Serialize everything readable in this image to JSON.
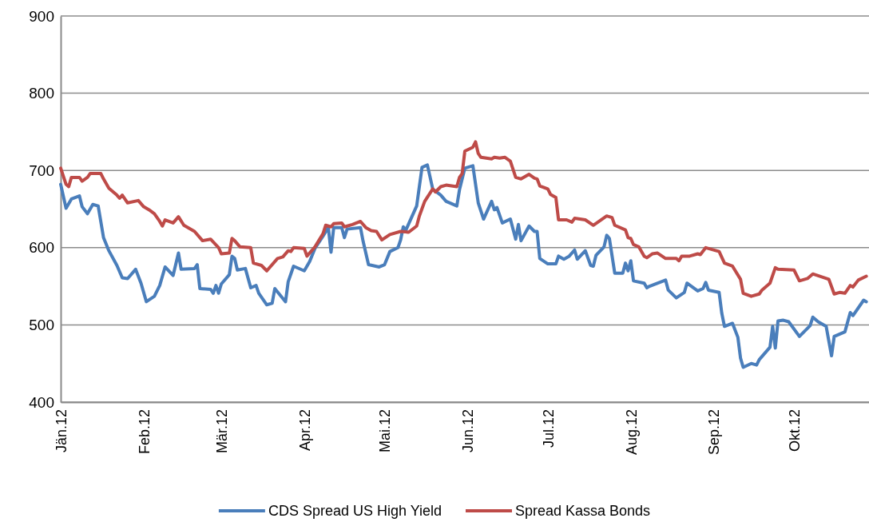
{
  "chart_data": {
    "type": "line",
    "ylim": [
      400,
      900
    ],
    "yticks": [
      400,
      500,
      600,
      700,
      800,
      900
    ],
    "xlim": [
      "2012-01-01",
      "2012-10-29"
    ],
    "xticks": [
      {
        "value": "2012-01-01",
        "label": "Jän.12"
      },
      {
        "value": "2012-02-01",
        "label": "Feb.12"
      },
      {
        "value": "2012-03-01",
        "label": "Mär.12"
      },
      {
        "value": "2012-04-01",
        "label": "Apr.12"
      },
      {
        "value": "2012-05-01",
        "label": "Mai.12"
      },
      {
        "value": "2012-06-01",
        "label": "Jun.12"
      },
      {
        "value": "2012-07-01",
        "label": "Jul.12"
      },
      {
        "value": "2012-08-01",
        "label": "Aug.12"
      },
      {
        "value": "2012-09-01",
        "label": "Sep.12"
      },
      {
        "value": "2012-10-01",
        "label": "Okt.12"
      }
    ],
    "grid": "y",
    "legend": "bottom",
    "marker": "none",
    "line_style": "solid",
    "series": [
      {
        "name": "CDS Spread US High Yield",
        "color": "#4a7ebb",
        "x": [
          "2012-01-01",
          "2012-01-03",
          "2012-01-05",
          "2012-01-08",
          "2012-01-09",
          "2012-01-11",
          "2012-01-13",
          "2012-01-15",
          "2012-01-17",
          "2012-01-19",
          "2012-01-22",
          "2012-01-24",
          "2012-01-26",
          "2012-01-29",
          "2012-01-31",
          "2012-02-02",
          "2012-02-05",
          "2012-02-07",
          "2012-02-09",
          "2012-02-12",
          "2012-02-14",
          "2012-02-15",
          "2012-02-20",
          "2012-02-21",
          "2012-02-22",
          "2012-02-26",
          "2012-02-27",
          "2012-02-28",
          "2012-02-29",
          "2012-03-01",
          "2012-03-04",
          "2012-03-05",
          "2012-03-06",
          "2012-03-07",
          "2012-03-10",
          "2012-03-12",
          "2012-03-14",
          "2012-03-15",
          "2012-03-18",
          "2012-03-20",
          "2012-03-21",
          "2012-03-25",
          "2012-03-26",
          "2012-03-28",
          "2012-04-01",
          "2012-04-03",
          "2012-04-05",
          "2012-04-08",
          "2012-04-10",
          "2012-04-11",
          "2012-04-12",
          "2012-04-15",
          "2012-04-16",
          "2012-04-17",
          "2012-04-22",
          "2012-04-23",
          "2012-04-25",
          "2012-04-29",
          "2012-05-01",
          "2012-05-03",
          "2012-05-06",
          "2012-05-07",
          "2012-05-08",
          "2012-05-09",
          "2012-05-13",
          "2012-05-15",
          "2012-05-17",
          "2012-05-19",
          "2012-05-22",
          "2012-05-24",
          "2012-05-28",
          "2012-05-29",
          "2012-05-31",
          "2012-06-03",
          "2012-06-05",
          "2012-06-07",
          "2012-06-10",
          "2012-06-11",
          "2012-06-12",
          "2012-06-14",
          "2012-06-17",
          "2012-06-19",
          "2012-06-20",
          "2012-06-21",
          "2012-06-24",
          "2012-06-26",
          "2012-06-27",
          "2012-06-28",
          "2012-07-01",
          "2012-07-04",
          "2012-07-05",
          "2012-07-07",
          "2012-07-09",
          "2012-07-11",
          "2012-07-12",
          "2012-07-15",
          "2012-07-17",
          "2012-07-18",
          "2012-07-19",
          "2012-07-22",
          "2012-07-23",
          "2012-07-24",
          "2012-07-26",
          "2012-07-29",
          "2012-07-30",
          "2012-07-31",
          "2012-08-01",
          "2012-08-02",
          "2012-08-06",
          "2012-08-07",
          "2012-08-08",
          "2012-08-14",
          "2012-08-15",
          "2012-08-18",
          "2012-08-21",
          "2012-08-22",
          "2012-08-26",
          "2012-08-28",
          "2012-08-29",
          "2012-08-30",
          "2012-09-03",
          "2012-09-04",
          "2012-09-05",
          "2012-09-08",
          "2012-09-10",
          "2012-09-11",
          "2012-09-12",
          "2012-09-15",
          "2012-09-17",
          "2012-09-18",
          "2012-09-22",
          "2012-09-23",
          "2012-09-24",
          "2012-09-25",
          "2012-09-27",
          "2012-09-29",
          "2012-10-03",
          "2012-10-07",
          "2012-10-08",
          "2012-10-10",
          "2012-10-13",
          "2012-10-15",
          "2012-10-16",
          "2012-10-20",
          "2012-10-22",
          "2012-10-23",
          "2012-10-27",
          "2012-10-28"
        ],
        "values": [
          682,
          651,
          663,
          667,
          653,
          644,
          656,
          654,
          613,
          596,
          577,
          561,
          560,
          572,
          554,
          530,
          537,
          551,
          575,
          564,
          593,
          572,
          573,
          578,
          547,
          546,
          541,
          551,
          541,
          553,
          565,
          589,
          586,
          571,
          573,
          548,
          551,
          541,
          526,
          528,
          547,
          530,
          556,
          576,
          570,
          582,
          599,
          615,
          626,
          594,
          626,
          626,
          613,
          624,
          626,
          608,
          578,
          575,
          578,
          595,
          600,
          610,
          627,
          623,
          654,
          704,
          707,
          676,
          668,
          660,
          654,
          675,
          703,
          706,
          658,
          637,
          660,
          649,
          652,
          632,
          637,
          611,
          630,
          609,
          628,
          621,
          621,
          586,
          579,
          579,
          589,
          585,
          589,
          597,
          585,
          596,
          577,
          576,
          590,
          601,
          616,
          612,
          567,
          567,
          580,
          570,
          583,
          557,
          554,
          548,
          550,
          558,
          545,
          535,
          542,
          554,
          544,
          547,
          555,
          545,
          542,
          515,
          498,
          502,
          484,
          457,
          445,
          450,
          448,
          455,
          471,
          498,
          470,
          505,
          506,
          504,
          485,
          499,
          510,
          504,
          498,
          460,
          485,
          491,
          516,
          512,
          532,
          530
        ]
      },
      {
        "name": "Spread Kassa Bonds",
        "color": "#be4b48",
        "x": [
          "2012-01-01",
          "2012-01-03",
          "2012-01-04",
          "2012-01-05",
          "2012-01-08",
          "2012-01-09",
          "2012-01-11",
          "2012-01-12",
          "2012-01-16",
          "2012-01-17",
          "2012-01-19",
          "2012-01-22",
          "2012-01-23",
          "2012-01-24",
          "2012-01-26",
          "2012-01-30",
          "2012-02-01",
          "2012-02-03",
          "2012-02-05",
          "2012-02-07",
          "2012-02-08",
          "2012-02-09",
          "2012-02-12",
          "2012-02-14",
          "2012-02-16",
          "2012-02-20",
          "2012-02-23",
          "2012-02-26",
          "2012-02-29",
          "2012-03-01",
          "2012-03-04",
          "2012-03-05",
          "2012-03-06",
          "2012-03-08",
          "2012-03-12",
          "2012-03-13",
          "2012-03-16",
          "2012-03-18",
          "2012-03-22",
          "2012-03-24",
          "2012-03-26",
          "2012-03-27",
          "2012-03-28",
          "2012-04-01",
          "2012-04-02",
          "2012-04-05",
          "2012-04-08",
          "2012-04-09",
          "2012-04-11",
          "2012-04-12",
          "2012-04-15",
          "2012-04-16",
          "2012-04-19",
          "2012-04-22",
          "2012-04-24",
          "2012-04-26",
          "2012-04-28",
          "2012-04-30",
          "2012-05-03",
          "2012-05-07",
          "2012-05-10",
          "2012-05-13",
          "2012-05-14",
          "2012-05-16",
          "2012-05-19",
          "2012-05-20",
          "2012-05-22",
          "2012-05-24",
          "2012-05-28",
          "2012-05-29",
          "2012-05-30",
          "2012-05-31",
          "2012-06-03",
          "2012-06-04",
          "2012-06-05",
          "2012-06-06",
          "2012-06-10",
          "2012-06-11",
          "2012-06-13",
          "2012-06-15",
          "2012-06-17",
          "2012-06-19",
          "2012-06-21",
          "2012-06-24",
          "2012-06-26",
          "2012-06-27",
          "2012-06-28",
          "2012-07-01",
          "2012-07-02",
          "2012-07-04",
          "2012-07-05",
          "2012-07-08",
          "2012-07-10",
          "2012-07-11",
          "2012-07-15",
          "2012-07-18",
          "2012-07-23",
          "2012-07-25",
          "2012-07-26",
          "2012-07-30",
          "2012-07-31",
          "2012-08-01",
          "2012-08-02",
          "2012-08-04",
          "2012-08-06",
          "2012-08-07",
          "2012-08-09",
          "2012-08-11",
          "2012-08-14",
          "2012-08-18",
          "2012-08-19",
          "2012-08-20",
          "2012-08-23",
          "2012-08-26",
          "2012-08-27",
          "2012-08-29",
          "2012-09-03",
          "2012-09-05",
          "2012-09-08",
          "2012-09-11",
          "2012-09-12",
          "2012-09-15",
          "2012-09-18",
          "2012-09-19",
          "2012-09-22",
          "2012-09-24",
          "2012-09-25",
          "2012-10-01",
          "2012-10-03",
          "2012-10-06",
          "2012-10-08",
          "2012-10-14",
          "2012-10-16",
          "2012-10-18",
          "2012-10-20",
          "2012-10-22",
          "2012-10-23",
          "2012-10-25",
          "2012-10-28"
        ],
        "values": [
          703,
          682,
          679,
          691,
          691,
          686,
          691,
          696,
          696,
          689,
          677,
          668,
          664,
          668,
          658,
          661,
          653,
          649,
          644,
          634,
          628,
          636,
          632,
          640,
          629,
          621,
          609,
          611,
          600,
          592,
          593,
          612,
          609,
          601,
          600,
          580,
          577,
          570,
          586,
          588,
          596,
          595,
          600,
          599,
          589,
          601,
          618,
          629,
          627,
          631,
          632,
          627,
          630,
          634,
          626,
          622,
          621,
          610,
          617,
          621,
          620,
          628,
          641,
          660,
          676,
          672,
          679,
          681,
          679,
          691,
          696,
          725,
          730,
          737,
          722,
          717,
          715,
          717,
          716,
          717,
          712,
          691,
          689,
          695,
          690,
          689,
          680,
          676,
          669,
          665,
          636,
          636,
          633,
          638,
          636,
          629,
          641,
          639,
          629,
          623,
          613,
          612,
          604,
          601,
          589,
          587,
          592,
          593,
          586,
          586,
          583,
          589,
          589,
          592,
          591,
          600,
          595,
          580,
          576,
          559,
          541,
          537,
          540,
          545,
          554,
          574,
          572,
          571,
          557,
          560,
          566,
          559,
          540,
          542,
          541,
          551,
          549,
          558,
          563
        ]
      }
    ]
  }
}
